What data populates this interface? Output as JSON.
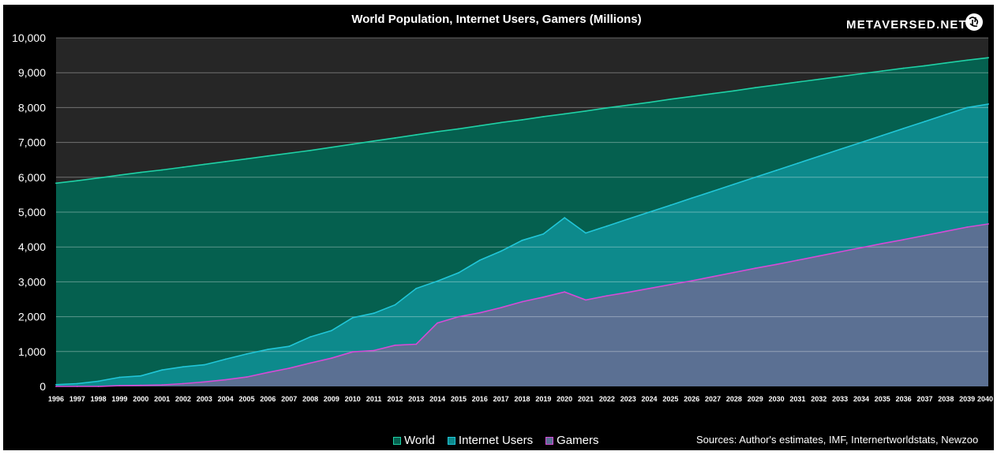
{
  "chart_data": {
    "type": "area",
    "title": "World Population, Internet Users, Gamers (Millions)",
    "x": [
      "1996",
      "1997",
      "1998",
      "1999",
      "2000",
      "2001",
      "2002",
      "2003",
      "2004",
      "2005",
      "2006",
      "2007",
      "2008",
      "2009",
      "2010",
      "2011",
      "2012",
      "2013",
      "2014",
      "2015",
      "2016",
      "2017",
      "2018",
      "2019",
      "2020",
      "2021",
      "2022",
      "2023",
      "2024",
      "2025",
      "2026",
      "2027",
      "2028",
      "2029",
      "2030",
      "2031",
      "2032",
      "2033",
      "2034",
      "2035",
      "2036",
      "2037",
      "2038",
      "2039",
      "2040"
    ],
    "yticks": [
      "0",
      "1,000",
      "2,000",
      "3,000",
      "4,000",
      "5,000",
      "6,000",
      "7,000",
      "8,000",
      "9,000",
      "10,000"
    ],
    "ylim": [
      0,
      10000
    ],
    "series": [
      {
        "name": "World",
        "color": "#1fd1a6",
        "fill": "#05604f",
        "values": [
          5830,
          5900,
          5980,
          6060,
          6140,
          6210,
          6290,
          6370,
          6450,
          6530,
          6610,
          6690,
          6770,
          6860,
          6950,
          7040,
          7130,
          7220,
          7310,
          7390,
          7480,
          7570,
          7650,
          7740,
          7820,
          7900,
          7990,
          8070,
          8150,
          8240,
          8320,
          8400,
          8480,
          8570,
          8650,
          8730,
          8810,
          8890,
          8970,
          9050,
          9130,
          9200,
          9280,
          9360,
          9430
        ]
      },
      {
        "name": "Internet Users",
        "color": "#21c6d8",
        "fill": "#0d8a8c",
        "values": [
          50,
          80,
          150,
          260,
          300,
          470,
          560,
          620,
          780,
          930,
          1060,
          1150,
          1420,
          1600,
          1970,
          2100,
          2340,
          2810,
          3020,
          3260,
          3620,
          3880,
          4190,
          4370,
          4840,
          4400,
          4600,
          4800,
          5000,
          5200,
          5400,
          5600,
          5800,
          6000,
          6200,
          6400,
          6600,
          6800,
          7000,
          7200,
          7400,
          7600,
          7800,
          8000,
          8100
        ]
      },
      {
        "name": "Gamers",
        "color": "#d64bd6",
        "fill": "#5b7093",
        "values": [
          0,
          0,
          0,
          20,
          30,
          40,
          80,
          130,
          190,
          270,
          400,
          520,
          670,
          810,
          990,
          1030,
          1180,
          1210,
          1820,
          2000,
          2110,
          2260,
          2430,
          2560,
          2710,
          2480,
          2600,
          2700,
          2810,
          2920,
          3030,
          3150,
          3270,
          3390,
          3500,
          3620,
          3740,
          3860,
          3980,
          4100,
          4210,
          4330,
          4450,
          4570,
          4660
        ]
      }
    ],
    "legend_position": "bottom",
    "grid": true
  },
  "brand": "METAVERSED.NET",
  "source_note": "Sources: Author's estimates, IMF, Internertworldstats, Newzoo"
}
